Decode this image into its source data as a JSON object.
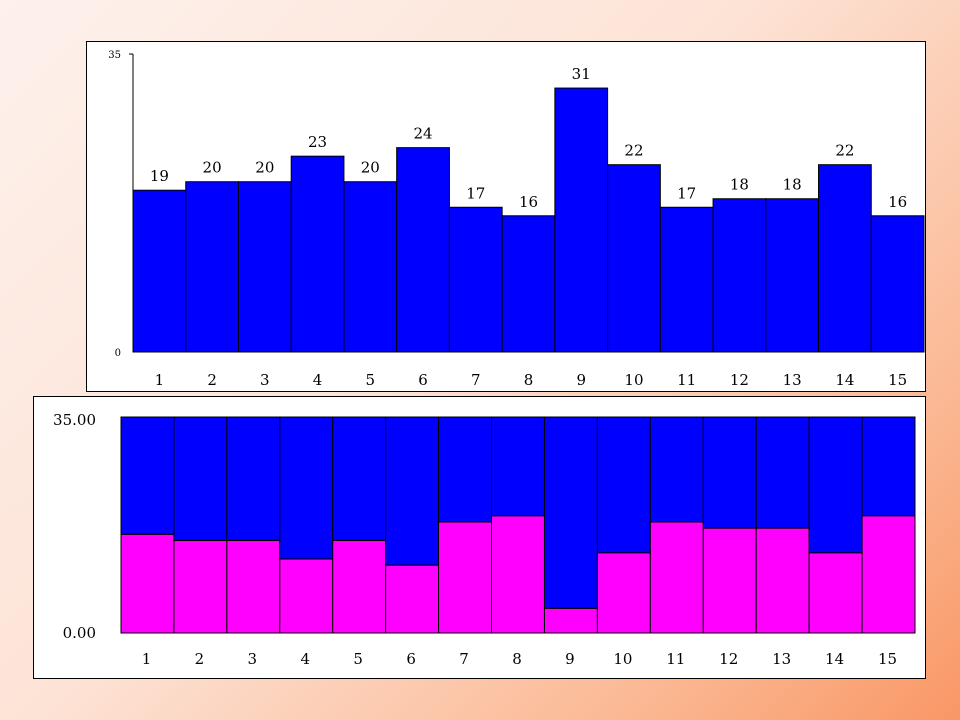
{
  "chart_data": [
    {
      "type": "bar",
      "categories": [
        "1",
        "2",
        "3",
        "4",
        "5",
        "6",
        "7",
        "8",
        "9",
        "10",
        "11",
        "12",
        "13",
        "14",
        "15"
      ],
      "values": [
        19,
        20,
        20,
        23,
        20,
        24,
        17,
        16,
        31,
        22,
        17,
        18,
        18,
        22,
        16
      ],
      "ylim": [
        0,
        35
      ],
      "y_tick_labels": [
        "0",
        "35"
      ],
      "data_labels": true,
      "grid": false,
      "bar_color": "#0000ff"
    },
    {
      "type": "bar",
      "stacked": true,
      "categories": [
        "1",
        "2",
        "3",
        "4",
        "5",
        "6",
        "7",
        "8",
        "9",
        "10",
        "11",
        "12",
        "13",
        "14",
        "15"
      ],
      "series": [
        {
          "values": [
            16,
            15,
            15,
            12,
            15,
            11,
            18,
            19,
            4,
            13,
            18,
            17,
            17,
            13,
            19
          ],
          "color": "#ff00ff"
        },
        {
          "values": [
            19,
            20,
            20,
            23,
            20,
            24,
            17,
            16,
            31,
            22,
            17,
            18,
            18,
            22,
            16
          ],
          "color": "#0000ff"
        }
      ],
      "ylim": [
        0,
        35
      ],
      "y_tick_labels": [
        "0.00",
        "35.00"
      ],
      "grid": false
    }
  ]
}
